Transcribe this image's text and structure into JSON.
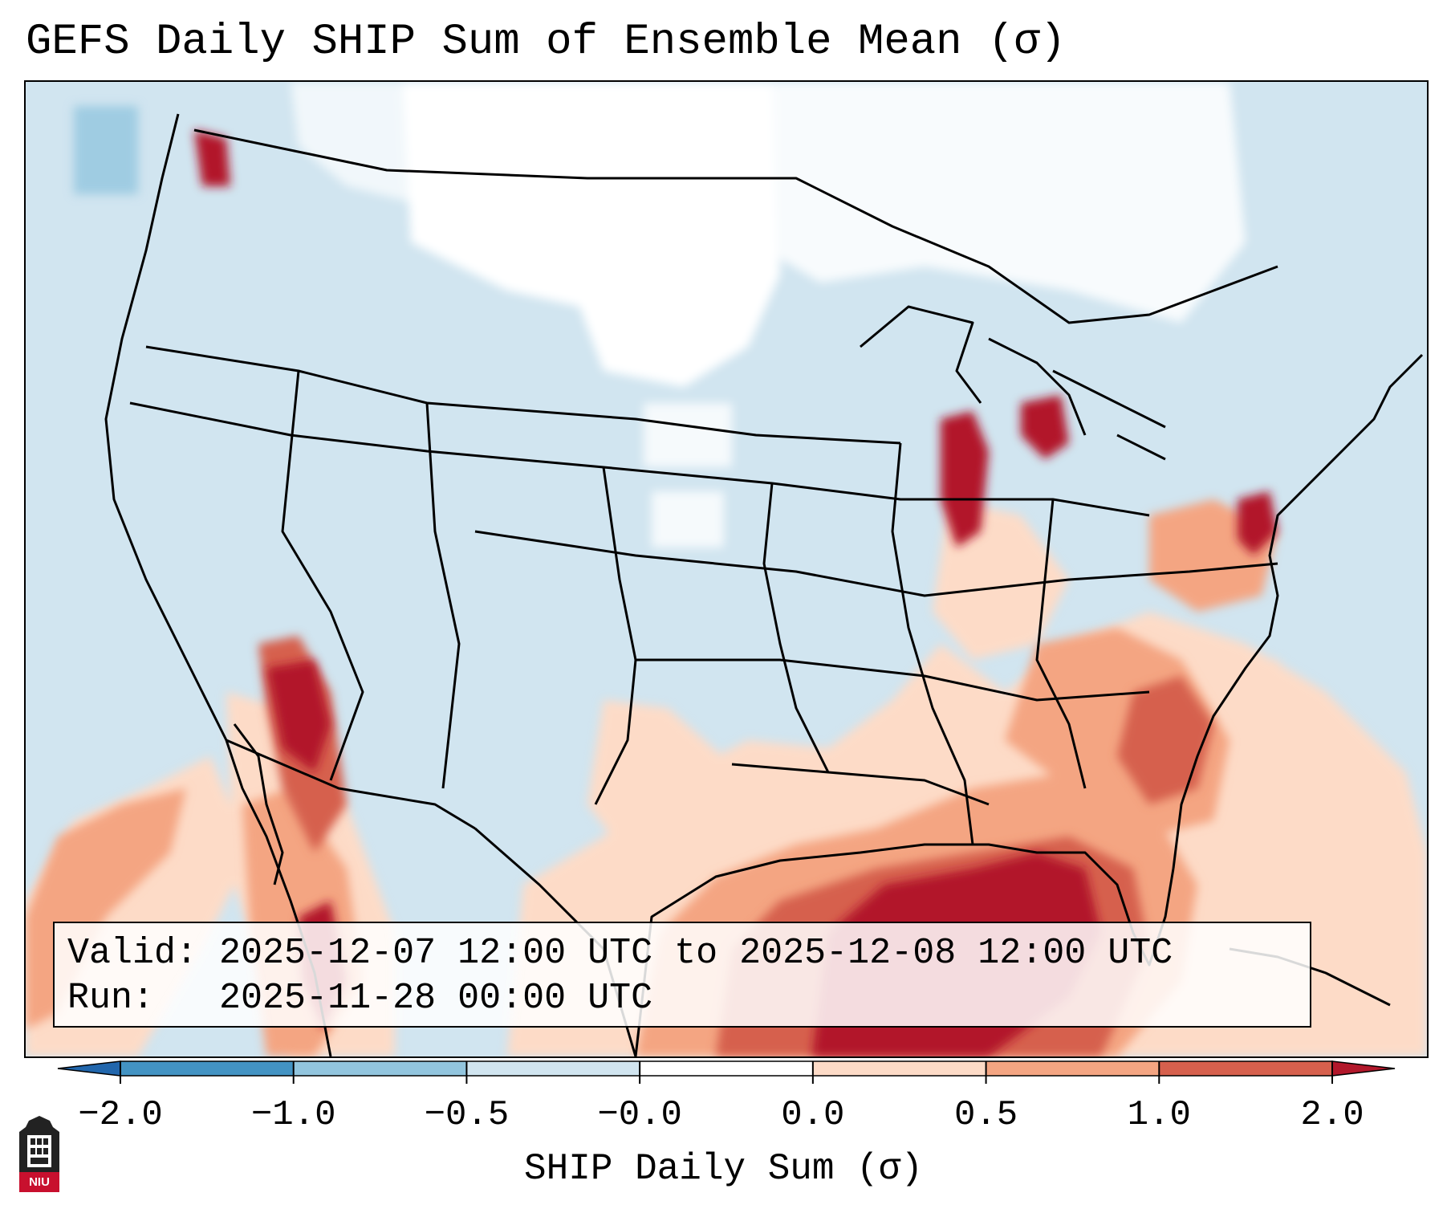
{
  "title": "GEFS Daily SHIP Sum of Ensemble Mean (σ)",
  "info": {
    "valid_label": "Valid:",
    "valid_range": "2025-12-07 12:00 UTC to 2025-12-08 12:00 UTC",
    "run_label": "Run:",
    "run_time": "2025-11-28 00:00 UTC"
  },
  "colorbar": {
    "label": "SHIP Daily Sum (σ)",
    "ticks": [
      "−2.0",
      "−1.0",
      "−0.5",
      "−0.0",
      "0.0",
      "0.5",
      "1.0",
      "2.0"
    ],
    "colors": [
      "#2166ac",
      "#4393c3",
      "#92c5de",
      "#d1e5f0",
      "#ffffff",
      "#fddbc7",
      "#f4a582",
      "#d6604d",
      "#b2182b"
    ],
    "extend": "both"
  },
  "logo": {
    "text": "NIU",
    "icon": "niu-castle-logo"
  },
  "map": {
    "region": "Continental United States",
    "background_color": "#d1e5f0",
    "hotspots": [
      {
        "area": "Gulf of Mexico",
        "level": 2.0
      },
      {
        "area": "Southeast US coast",
        "level": 1.0
      },
      {
        "area": "Lower Colorado River / Gulf of California",
        "level": 2.0
      },
      {
        "area": "Lake Michigan shore",
        "level": 2.0
      },
      {
        "area": "New Jersey coast",
        "level": 2.0
      }
    ]
  }
}
